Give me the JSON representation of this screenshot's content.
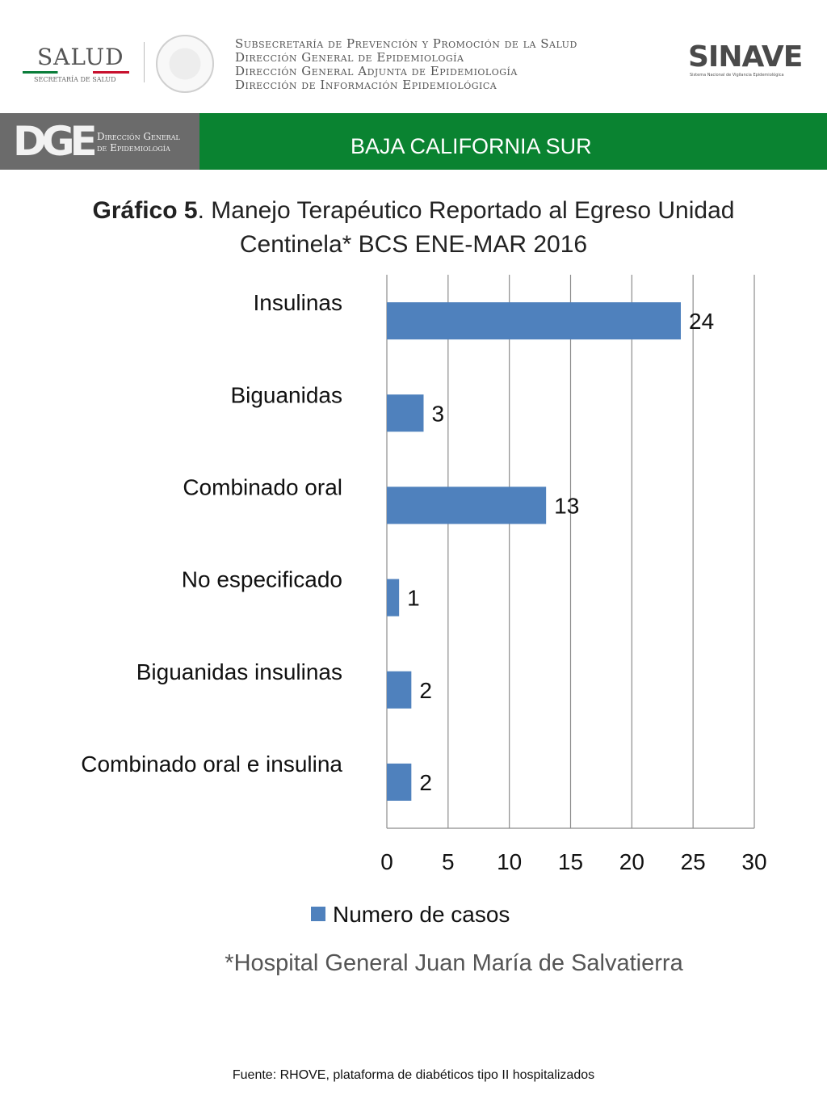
{
  "header": {
    "salud_logo": {
      "word": "SALUD",
      "subtitle": "SECRETARÍA DE SALUD"
    },
    "agency_lines": [
      "Subsecretaría de Prevención y Promoción de la Salud",
      "Dirección General de Epidemiología",
      "Dirección General Adjunta de Epidemiología",
      "Dirección de Información Epidemiológica"
    ],
    "sinave_logo": {
      "word": "SINAVE",
      "subtitle": "Sistema Nacional de Vigilancia Epidemiológica"
    }
  },
  "banner": {
    "logo_mark": "DGE",
    "logo_text_line1": "Dirección General",
    "logo_text_line2": "de Epidemiología",
    "title": "BAJA CALIFORNIA SUR",
    "bg_color": "#0a8331",
    "logo_bg_color": "#6b6b6b"
  },
  "chart_title": {
    "bold_part": "Gráfico 5",
    "rest_line1": ". Manejo Terapéutico Reportado al Egreso Unidad",
    "line2": "Centinela* BCS ENE-MAR 2016"
  },
  "chart_data": {
    "type": "bar",
    "orientation": "horizontal",
    "categories": [
      "Insulinas",
      "Biguanidas",
      "Combinado oral",
      "No especificado",
      "Biguanidas     insulinas",
      "Combinado oral e insulina"
    ],
    "series": [
      {
        "name": "Numero de casos",
        "values": [
          24,
          3,
          13,
          1,
          2,
          2
        ],
        "color": "#4f81bd"
      }
    ],
    "xlim": [
      0,
      30
    ],
    "x_ticks": [
      "0",
      "5",
      "10",
      "15",
      "20",
      "25",
      "30"
    ],
    "grid": true,
    "legend_position": "bottom",
    "data_labels": true
  },
  "footnote": "*Hospital General Juan María de Salvatierra",
  "source": "Fuente: RHOVE, plataforma de diabéticos tipo II hospitalizados"
}
